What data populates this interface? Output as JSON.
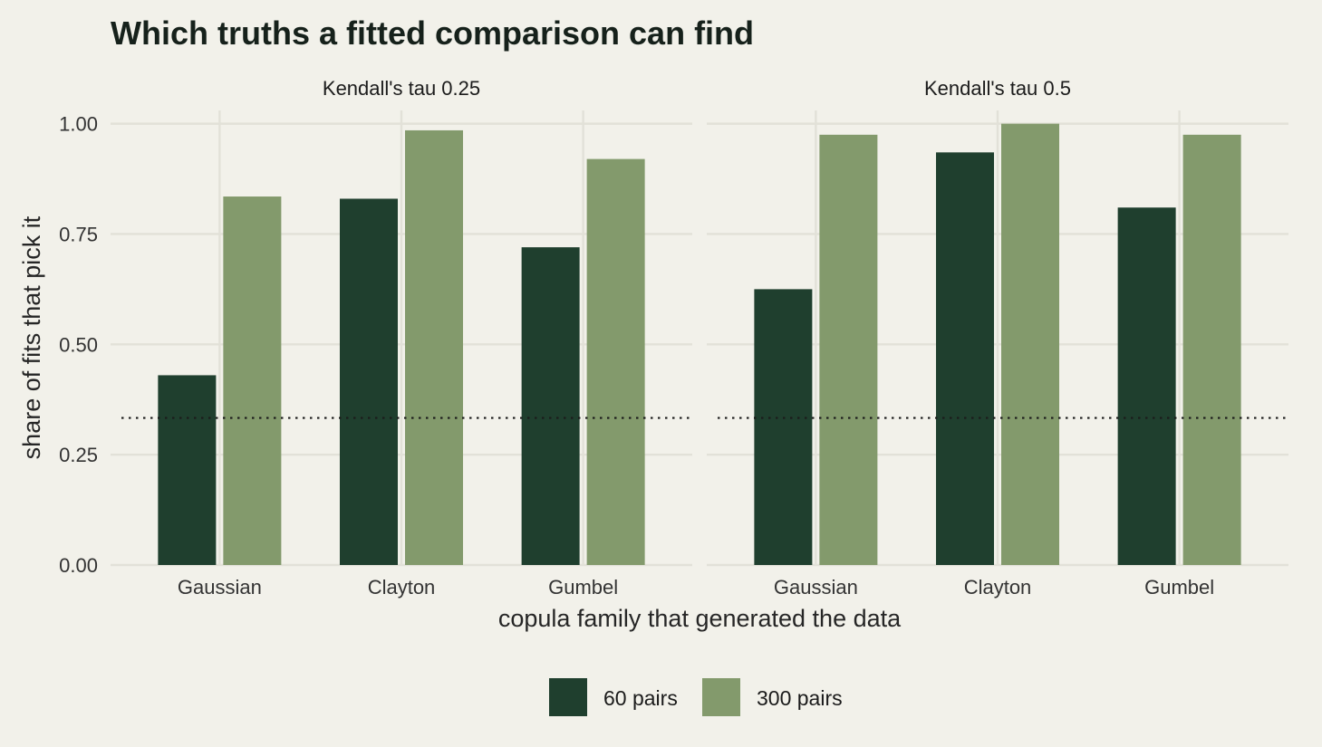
{
  "chart_data": {
    "type": "bar",
    "title": "Which truths a fitted comparison can find",
    "xlabel": "copula family that generated the data",
    "ylabel": "share of fits that pick it",
    "ylim": [
      0,
      1.03
    ],
    "yticks": [
      0,
      0.25,
      0.5,
      0.75,
      1
    ],
    "ytick_labels": [
      "0.00",
      "0.25",
      "0.50",
      "0.75",
      "1.00"
    ],
    "grid": true,
    "legend_position": "bottom",
    "reference_line": {
      "y": 0.3333,
      "style": "dotted"
    },
    "categories": [
      "Gaussian",
      "Clayton",
      "Gumbel"
    ],
    "panels": [
      {
        "label": "Kendall's tau 0.25",
        "series": [
          {
            "name": "60 pairs",
            "values": [
              0.43,
              0.83,
              0.72
            ]
          },
          {
            "name": "300 pairs",
            "values": [
              0.835,
              0.985,
              0.92
            ]
          }
        ]
      },
      {
        "label": "Kendall's tau 0.5",
        "series": [
          {
            "name": "60 pairs",
            "values": [
              0.625,
              0.935,
              0.81
            ]
          },
          {
            "name": "300 pairs",
            "values": [
              0.975,
              1.0,
              0.975
            ]
          }
        ]
      }
    ],
    "legend": [
      {
        "name": "60 pairs",
        "color": "#1f3f2e"
      },
      {
        "name": "300 pairs",
        "color": "#839a6c"
      }
    ]
  }
}
